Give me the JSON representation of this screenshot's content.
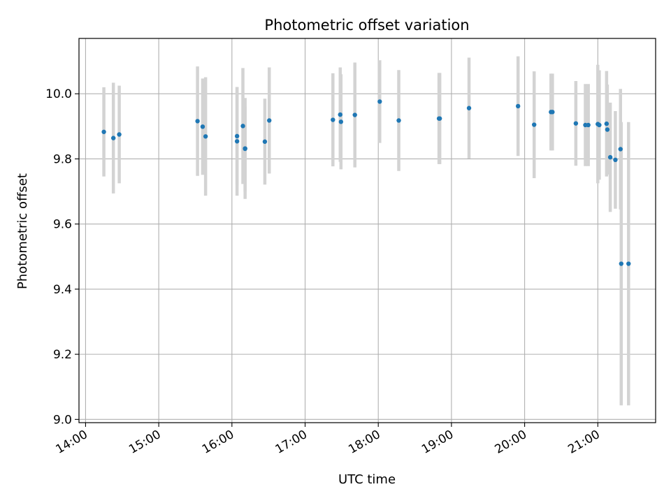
{
  "chart_data": {
    "type": "scatter",
    "title": "Photometric offset variation",
    "xlabel": "UTC time",
    "ylabel": "Photometric offset",
    "x_ticks": [
      {
        "label": "14:00",
        "hours": 14
      },
      {
        "label": "15:00",
        "hours": 15
      },
      {
        "label": "16:00",
        "hours": 16
      },
      {
        "label": "17:00",
        "hours": 17
      },
      {
        "label": "18:00",
        "hours": 18
      },
      {
        "label": "19:00",
        "hours": 19
      },
      {
        "label": "20:00",
        "hours": 20
      },
      {
        "label": "21:00",
        "hours": 21
      }
    ],
    "y_ticks": [
      {
        "label": "9.0",
        "value": 9.0
      },
      {
        "label": "9.2",
        "value": 9.2
      },
      {
        "label": "9.4",
        "value": 9.4
      },
      {
        "label": "9.6",
        "value": 9.6
      },
      {
        "label": "9.8",
        "value": 9.8
      },
      {
        "label": "10.0",
        "value": 10.0
      }
    ],
    "xlim": [
      13.91,
      21.79
    ],
    "ylim": [
      8.99,
      10.17
    ],
    "grid": true,
    "point_color": "#1f77b4",
    "errorbar_color": "#d3d3d3",
    "points": [
      {
        "t": 14.25,
        "y": 9.883,
        "err": 0.137
      },
      {
        "t": 14.38,
        "y": 9.864,
        "err": 0.17
      },
      {
        "t": 14.46,
        "y": 9.875,
        "err": 0.15
      },
      {
        "t": 15.53,
        "y": 9.916,
        "err": 0.168
      },
      {
        "t": 15.6,
        "y": 9.899,
        "err": 0.148
      },
      {
        "t": 15.64,
        "y": 9.869,
        "err": 0.182
      },
      {
        "t": 16.07,
        "y": 9.87,
        "err": 0.15
      },
      {
        "t": 16.07,
        "y": 9.854,
        "err": 0.167
      },
      {
        "t": 16.15,
        "y": 9.901,
        "err": 0.178
      },
      {
        "t": 16.18,
        "y": 9.832,
        "err": 0.155
      },
      {
        "t": 16.18,
        "y": 9.831,
        "err": 0.131
      },
      {
        "t": 16.45,
        "y": 9.853,
        "err": 0.132
      },
      {
        "t": 16.51,
        "y": 9.918,
        "err": 0.163
      },
      {
        "t": 17.38,
        "y": 9.92,
        "err": 0.143
      },
      {
        "t": 17.48,
        "y": 9.936,
        "err": 0.145
      },
      {
        "t": 17.49,
        "y": 9.914,
        "err": 0.146
      },
      {
        "t": 17.68,
        "y": 9.935,
        "err": 0.161
      },
      {
        "t": 18.02,
        "y": 9.976,
        "err": 0.127
      },
      {
        "t": 18.28,
        "y": 9.918,
        "err": 0.155
      },
      {
        "t": 18.83,
        "y": 9.924,
        "err": 0.14
      },
      {
        "t": 18.84,
        "y": 9.924,
        "err": 0.14
      },
      {
        "t": 19.24,
        "y": 9.956,
        "err": 0.155
      },
      {
        "t": 19.91,
        "y": 9.962,
        "err": 0.153
      },
      {
        "t": 20.13,
        "y": 9.905,
        "err": 0.164
      },
      {
        "t": 20.36,
        "y": 9.944,
        "err": 0.118
      },
      {
        "t": 20.38,
        "y": 9.944,
        "err": 0.118
      },
      {
        "t": 20.7,
        "y": 9.909,
        "err": 0.13
      },
      {
        "t": 20.83,
        "y": 9.904,
        "err": 0.126
      },
      {
        "t": 20.87,
        "y": 9.904,
        "err": 0.126
      },
      {
        "t": 21.0,
        "y": 9.907,
        "err": 0.182
      },
      {
        "t": 21.02,
        "y": 9.904,
        "err": 0.168
      },
      {
        "t": 21.12,
        "y": 9.908,
        "err": 0.162
      },
      {
        "t": 21.13,
        "y": 9.89,
        "err": 0.138
      },
      {
        "t": 21.17,
        "y": 9.805,
        "err": 0.168
      },
      {
        "t": 21.24,
        "y": 9.797,
        "err": 0.15
      },
      {
        "t": 21.31,
        "y": 9.83,
        "err": 0.185
      },
      {
        "t": 21.32,
        "y": 9.478,
        "err": 0.435
      },
      {
        "t": 21.42,
        "y": 9.478,
        "err": 0.435
      }
    ]
  }
}
